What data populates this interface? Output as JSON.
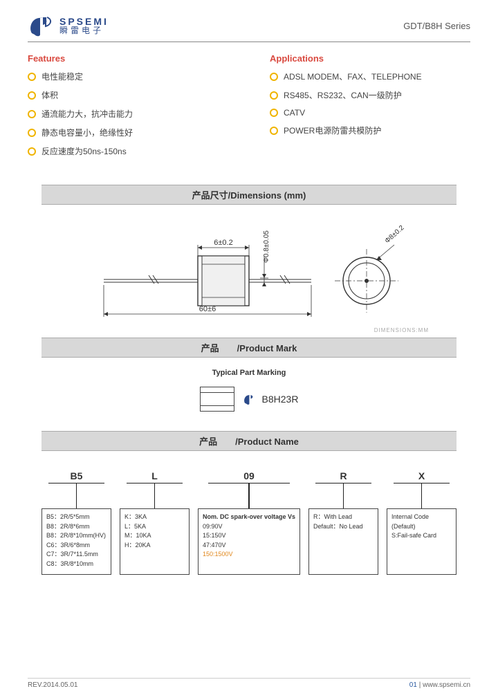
{
  "header": {
    "logo_en": "SPSEMI",
    "logo_cn": "瞬雷电子",
    "series": "GDT/B8H Series"
  },
  "features": {
    "title": "Features",
    "items": [
      "电性能稳定",
      "体积",
      "通流能力大，抗冲击能力",
      "静态电容量小，绝缘性好",
      "反应速度为50ns-150ns"
    ]
  },
  "applications": {
    "title": "Applications",
    "items": [
      "ADSL MODEM、FAX、TELEPHONE",
      "RS485、RS232、CAN一级防护",
      "CATV",
      "POWER电源防雷共模防护"
    ]
  },
  "dimensions": {
    "bar": "产品尺寸/Dimensions (mm)",
    "body_w": "6±0.2",
    "lead_dia": "Φ0.8±0.05",
    "total_len": "60±6",
    "outer_dia": "Φ8±0.2",
    "caption": "DIMENSIONS:MM"
  },
  "product_mark": {
    "bar": "产品　　/Product Mark",
    "typical": "Typical Part Marking",
    "code": "B8H23R"
  },
  "product_name": {
    "bar": "产品　　/Product Name",
    "cols": [
      {
        "head": "B5",
        "rows": [
          "B5：2R/5*5mm",
          "B8：2R/8*6mm",
          "B8：2R/8*10mm(HV)",
          "C6：3R/6*8mm",
          "C7：3R/7*11.5mm",
          "C8：3R/8*10mm"
        ]
      },
      {
        "head": "L",
        "rows": [
          "K：3KA",
          "L：5KA",
          "M：10KA",
          "H：20KA"
        ]
      },
      {
        "head": "09",
        "bold": "Nom. DC spark-over voltage Vs",
        "rows": [
          "09:90V",
          "15:150V",
          "47:470V"
        ],
        "orange": "150:1500V"
      },
      {
        "head": "R",
        "rows": [
          "R：With Lead",
          "Default：No Lead"
        ]
      },
      {
        "head": "X",
        "rows": [
          "Internal Code",
          "(Default)",
          "S:Fail-safe Card"
        ]
      }
    ]
  },
  "footer": {
    "rev": "REV.2014.05.01",
    "page": "01",
    "url": "www.spsemi.cn"
  },
  "colors": {
    "accent_red": "#d9493f",
    "accent_yellow": "#f0b400",
    "logo_blue": "#2b4a8a",
    "bar_bg": "#d8d8d8"
  }
}
